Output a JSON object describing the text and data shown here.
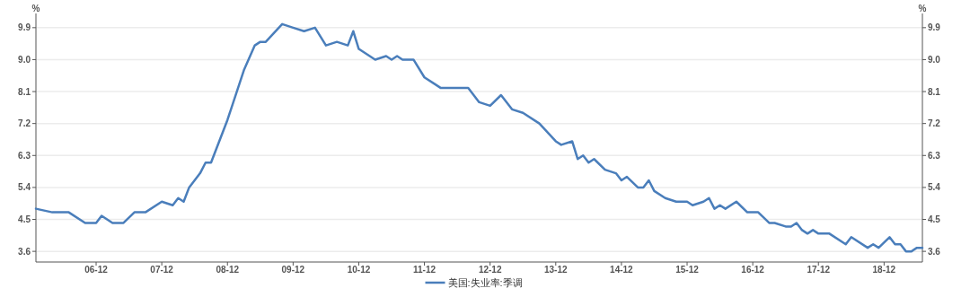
{
  "chart_data": {
    "type": "line",
    "ylabel": "%",
    "y2label": "%",
    "legend": "bottom",
    "grid": "y",
    "line_style": "solid",
    "marker": "none",
    "xlim": [
      "2006-01",
      "2019-07"
    ],
    "xticks": [
      {
        "value": "2006-12",
        "label": "06-12"
      },
      {
        "value": "2007-12",
        "label": "07-12"
      },
      {
        "value": "2008-12",
        "label": "08-12"
      },
      {
        "value": "2009-12",
        "label": "09-12"
      },
      {
        "value": "2010-12",
        "label": "10-12"
      },
      {
        "value": "2011-12",
        "label": "11-12"
      },
      {
        "value": "2012-12",
        "label": "12-12"
      },
      {
        "value": "2013-12",
        "label": "13-12"
      },
      {
        "value": "2014-12",
        "label": "14-12"
      },
      {
        "value": "2015-12",
        "label": "15-12"
      },
      {
        "value": "2016-12",
        "label": "16-12"
      },
      {
        "value": "2017-12",
        "label": "17-12"
      },
      {
        "value": "2018-12",
        "label": "18-12"
      }
    ],
    "ylim": [
      3.3,
      10.3
    ],
    "yticks": [
      {
        "value": 3.6,
        "label": "3.6"
      },
      {
        "value": 4.5,
        "label": "4.5"
      },
      {
        "value": 5.4,
        "label": "5.4"
      },
      {
        "value": 6.3,
        "label": "6.3"
      },
      {
        "value": 7.2,
        "label": "7.2"
      },
      {
        "value": 8.1,
        "label": "8.1"
      },
      {
        "value": 9.0,
        "label": "9.0"
      },
      {
        "value": 9.9,
        "label": "9.9"
      }
    ],
    "y2lim": [
      3.3,
      10.3
    ],
    "y2ticks": [
      {
        "value": 3.6,
        "label": "3.6"
      },
      {
        "value": 4.5,
        "label": "4.5"
      },
      {
        "value": 5.4,
        "label": "5.4"
      },
      {
        "value": 6.3,
        "label": "6.3"
      },
      {
        "value": 7.2,
        "label": "7.2"
      },
      {
        "value": 8.1,
        "label": "8.1"
      },
      {
        "value": 9.0,
        "label": "9.0"
      },
      {
        "value": 9.9,
        "label": "9.9"
      }
    ],
    "x": [
      "2006-01",
      "2006-04",
      "2006-07",
      "2006-10",
      "2006-12",
      "2007-01",
      "2007-03",
      "2007-05",
      "2007-07",
      "2007-09",
      "2007-12",
      "2008-02",
      "2008-03",
      "2008-04",
      "2008-05",
      "2008-07",
      "2008-08",
      "2008-09",
      "2008-12",
      "2009-03",
      "2009-05",
      "2009-06",
      "2009-07",
      "2009-10",
      "2009-12",
      "2010-02",
      "2010-04",
      "2010-06",
      "2010-08",
      "2010-10",
      "2010-11",
      "2010-12",
      "2011-03",
      "2011-05",
      "2011-06",
      "2011-07",
      "2011-08",
      "2011-10",
      "2011-12",
      "2012-02",
      "2012-03",
      "2012-08",
      "2012-10",
      "2012-12",
      "2013-02",
      "2013-04",
      "2013-06",
      "2013-09",
      "2013-12",
      "2014-01",
      "2014-03",
      "2014-04",
      "2014-05",
      "2014-06",
      "2014-07",
      "2014-09",
      "2014-11",
      "2014-12",
      "2015-01",
      "2015-03",
      "2015-04",
      "2015-05",
      "2015-06",
      "2015-08",
      "2015-10",
      "2015-12",
      "2016-01",
      "2016-03",
      "2016-04",
      "2016-05",
      "2016-06",
      "2016-07",
      "2016-09",
      "2016-11",
      "2017-01",
      "2017-03",
      "2017-04",
      "2017-06",
      "2017-07",
      "2017-08",
      "2017-09",
      "2017-10",
      "2017-11",
      "2017-12",
      "2018-02",
      "2018-05",
      "2018-06",
      "2018-09",
      "2018-10",
      "2018-11",
      "2019-01",
      "2019-02",
      "2019-03",
      "2019-04",
      "2019-05",
      "2019-06",
      "2019-07"
    ],
    "series": [
      {
        "name": "美国:失业率:季调",
        "color": "#4a7ebb",
        "values": [
          4.8,
          4.7,
          4.7,
          4.4,
          4.4,
          4.6,
          4.4,
          4.4,
          4.7,
          4.7,
          5.0,
          4.9,
          5.1,
          5.0,
          5.4,
          5.8,
          6.1,
          6.1,
          7.3,
          8.7,
          9.4,
          9.5,
          9.5,
          10.0,
          9.9,
          9.8,
          9.9,
          9.4,
          9.5,
          9.4,
          9.8,
          9.3,
          9.0,
          9.1,
          9.0,
          9.1,
          9.0,
          9.0,
          8.5,
          8.3,
          8.2,
          8.2,
          7.8,
          7.7,
          8.0,
          7.6,
          7.5,
          7.2,
          6.7,
          6.6,
          6.7,
          6.2,
          6.3,
          6.1,
          6.2,
          5.9,
          5.8,
          5.6,
          5.7,
          5.4,
          5.4,
          5.6,
          5.3,
          5.1,
          5.0,
          5.0,
          4.9,
          5.0,
          5.1,
          4.8,
          4.9,
          4.8,
          5.0,
          4.7,
          4.7,
          4.4,
          4.4,
          4.3,
          4.3,
          4.4,
          4.2,
          4.1,
          4.2,
          4.1,
          4.1,
          3.8,
          4.0,
          3.7,
          3.8,
          3.7,
          4.0,
          3.8,
          3.8,
          3.6,
          3.6,
          3.7,
          3.7
        ]
      }
    ]
  }
}
